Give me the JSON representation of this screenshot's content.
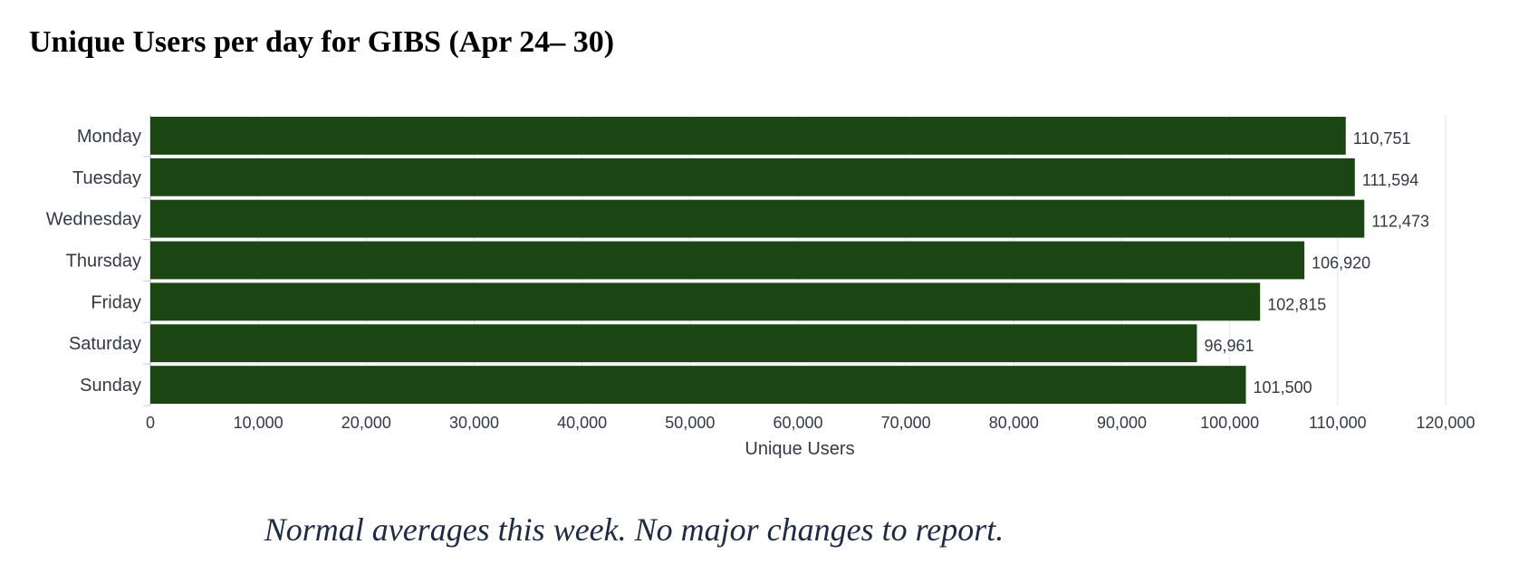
{
  "page": {
    "title": "Unique Users per day for GIBS (Apr 24– 30)",
    "caption": "Normal averages this week.  No major changes to report."
  },
  "colors": {
    "bar": "#1b4614",
    "axis_text": "#333a45",
    "grid": "#e3e6ea",
    "axis_line": "#c5ccd6"
  },
  "chart_data": {
    "type": "bar",
    "orientation": "horizontal",
    "title": "",
    "xlabel": "Unique Users",
    "ylabel": "",
    "categories": [
      "Monday",
      "Tuesday",
      "Wednesday",
      "Thursday",
      "Friday",
      "Saturday",
      "Sunday"
    ],
    "values": [
      110751,
      111594,
      112473,
      106920,
      102815,
      96961,
      101500
    ],
    "value_labels": [
      "110,751",
      "111,594",
      "112,473",
      "106,920",
      "102,815",
      "96,961",
      "101,500"
    ],
    "xlim": [
      0,
      120000
    ],
    "xticks": [
      0,
      10000,
      20000,
      30000,
      40000,
      50000,
      60000,
      70000,
      80000,
      90000,
      100000,
      110000,
      120000
    ],
    "xtick_labels": [
      "0",
      "10,000",
      "20,000",
      "30,000",
      "40,000",
      "50,000",
      "60,000",
      "70,000",
      "80,000",
      "90,000",
      "100,000",
      "110,000",
      "120,000"
    ],
    "grid": true,
    "legend": "none"
  }
}
